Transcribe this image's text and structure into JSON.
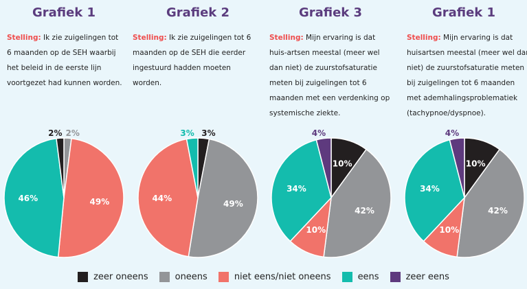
{
  "colors": {
    "zeer_oneens": "#231f20",
    "oneens": "#939598",
    "niet_eens": "#f1736a",
    "eens": "#14bcad",
    "zeer_eens": "#5e3a7e"
  },
  "statement_label": "Stelling:",
  "chart_data": [
    {
      "type": "pie",
      "title": "Grafiek 1",
      "statement": "Ik zie zuigelingen tot 6 maanden op de SEH waarbij het beleid in de eerste lijn voortgezet had kunnen worden.",
      "slices": [
        {
          "key": "oneens",
          "value": 2,
          "label": "2%"
        },
        {
          "key": "niet_eens",
          "value": 49,
          "label": "49%"
        },
        {
          "key": "eens",
          "value": 46,
          "label": "46%"
        },
        {
          "key": "zeer_oneens",
          "value": 2,
          "label": "2%"
        }
      ]
    },
    {
      "type": "pie",
      "title": "Grafiek 2",
      "statement": "Ik zie zuigelingen tot 6 maanden op de SEH die eerder ingestuurd hadden moeten worden.",
      "slices": [
        {
          "key": "zeer_oneens",
          "value": 3,
          "label": "3%"
        },
        {
          "key": "oneens",
          "value": 49,
          "label": "49%"
        },
        {
          "key": "niet_eens",
          "value": 44,
          "label": "44%"
        },
        {
          "key": "eens",
          "value": 3,
          "label": "3%"
        }
      ]
    },
    {
      "type": "pie",
      "title": "Grafiek 3",
      "statement": "Mijn ervaring is dat huis-artsen meestal (meer wel dan niet) de zuurstofsaturatie meten bij zuigelingen tot 6 maanden met een verdenking op systemische ziekte.",
      "slices": [
        {
          "key": "zeer_oneens",
          "value": 10,
          "label": "10%"
        },
        {
          "key": "oneens",
          "value": 42,
          "label": "42%"
        },
        {
          "key": "niet_eens",
          "value": 10,
          "label": "10%"
        },
        {
          "key": "eens",
          "value": 34,
          "label": "34%"
        },
        {
          "key": "zeer_eens",
          "value": 4,
          "label": "4%"
        }
      ]
    },
    {
      "type": "pie",
      "title": "Grafiek 1",
      "statement": "Mijn ervaring is dat huisartsen meestal (meer wel dan niet) de zuurstofsaturatie meten bij zuigelingen tot 6 maanden met ademhalingsproblematiek (tachypnoe/dyspnoe).",
      "slices": [
        {
          "key": "zeer_oneens",
          "value": 10,
          "label": "10%"
        },
        {
          "key": "oneens",
          "value": 42,
          "label": "42%"
        },
        {
          "key": "niet_eens",
          "value": 10,
          "label": "10%"
        },
        {
          "key": "eens",
          "value": 34,
          "label": "34%"
        },
        {
          "key": "zeer_eens",
          "value": 4,
          "label": "4%"
        }
      ]
    }
  ],
  "legend": [
    {
      "key": "zeer_oneens",
      "label": "zeer oneens"
    },
    {
      "key": "oneens",
      "label": "oneens"
    },
    {
      "key": "niet_eens",
      "label": "niet eens/niet oneens"
    },
    {
      "key": "eens",
      "label": "eens"
    },
    {
      "key": "zeer_eens",
      "label": "zeer eens"
    }
  ]
}
